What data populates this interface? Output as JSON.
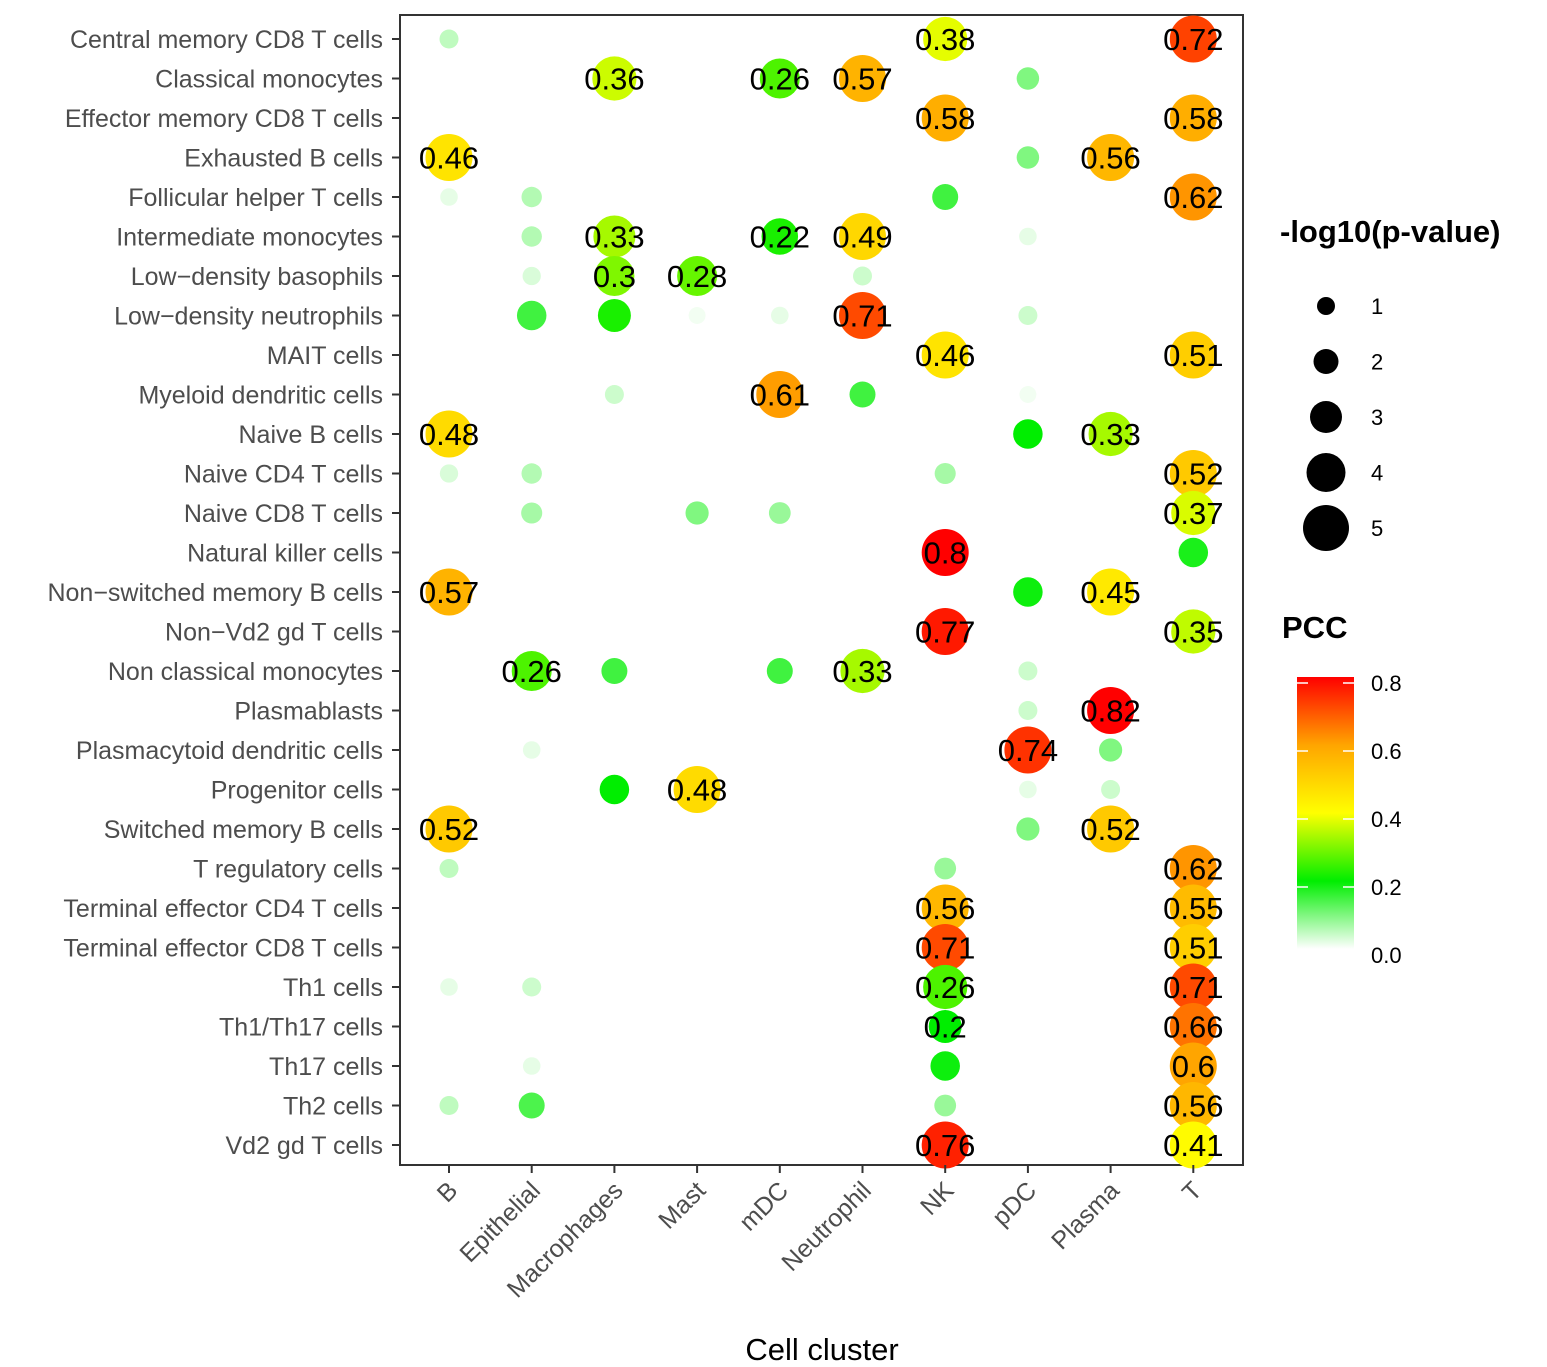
{
  "chart_data": {
    "type": "scatter",
    "title": "",
    "xlabel": "Cell cluster",
    "ylabel": "",
    "x_categories": [
      "B",
      "Epithelial",
      "Macrophages",
      "Mast",
      "mDC",
      "Neutrophil",
      "NK",
      "pDC",
      "Plasma",
      "T"
    ],
    "y_categories": [
      "Central memory CD8 T cells",
      "Classical monocytes",
      "Effector memory CD8 T cells",
      "Exhausted B cells",
      "Follicular helper T cells",
      "Intermediate monocytes",
      "Low−density basophils",
      "Low−density neutrophils",
      "MAIT cells",
      "Myeloid dendritic cells",
      "Naive B cells",
      "Naive CD4 T cells",
      "Naive CD8 T cells",
      "Natural killer cells",
      "Non−switched memory B cells",
      "Non−Vd2 gd T cells",
      "Non classical monocytes",
      "Plasmablasts",
      "Plasmacytoid dendritic cells",
      "Progenitor cells",
      "Switched memory B cells",
      "T regulatory cells",
      "Terminal effector CD4 T cells",
      "Terminal effector CD8 T cells",
      "Th1 cells",
      "Th1/Th17 cells",
      "Th17 cells",
      "Th2 cells",
      "Vd2 gd T cells"
    ],
    "points": [
      {
        "x": "B",
        "y": "Central memory CD8 T cells",
        "pcc": 0.05,
        "logp": 1.0,
        "label": ""
      },
      {
        "x": "NK",
        "y": "Central memory CD8 T cells",
        "pcc": 0.38,
        "logp": 4.6,
        "label": "0.38"
      },
      {
        "x": "T",
        "y": "Central memory CD8 T cells",
        "pcc": 0.72,
        "logp": 5.0,
        "label": "0.72"
      },
      {
        "x": "Macrophages",
        "y": "Classical monocytes",
        "pcc": 0.36,
        "logp": 4.6,
        "label": "0.36"
      },
      {
        "x": "mDC",
        "y": "Classical monocytes",
        "pcc": 0.26,
        "logp": 4.0,
        "label": "0.26"
      },
      {
        "x": "Neutrophil",
        "y": "Classical monocytes",
        "pcc": 0.57,
        "logp": 5.0,
        "label": "0.57"
      },
      {
        "x": "pDC",
        "y": "Classical monocytes",
        "pcc": 0.1,
        "logp": 1.5,
        "label": ""
      },
      {
        "x": "NK",
        "y": "Effector memory CD8 T cells",
        "pcc": 0.58,
        "logp": 5.0,
        "label": "0.58"
      },
      {
        "x": "T",
        "y": "Effector memory CD8 T cells",
        "pcc": 0.58,
        "logp": 5.0,
        "label": "0.58"
      },
      {
        "x": "B",
        "y": "Exhausted B cells",
        "pcc": 0.46,
        "logp": 5.0,
        "label": "0.46"
      },
      {
        "x": "pDC",
        "y": "Exhausted B cells",
        "pcc": 0.1,
        "logp": 1.5,
        "label": ""
      },
      {
        "x": "Plasma",
        "y": "Exhausted B cells",
        "pcc": 0.56,
        "logp": 5.0,
        "label": "0.56"
      },
      {
        "x": "B",
        "y": "Follicular helper T cells",
        "pcc": 0.02,
        "logp": 0.8,
        "label": ""
      },
      {
        "x": "Epithelial",
        "y": "Follicular helper T cells",
        "pcc": 0.06,
        "logp": 1.2,
        "label": ""
      },
      {
        "x": "NK",
        "y": "Follicular helper T cells",
        "pcc": 0.15,
        "logp": 2.0,
        "label": ""
      },
      {
        "x": "T",
        "y": "Follicular helper T cells",
        "pcc": 0.62,
        "logp": 5.0,
        "label": "0.62"
      },
      {
        "x": "Epithelial",
        "y": "Intermediate monocytes",
        "pcc": 0.06,
        "logp": 1.2,
        "label": ""
      },
      {
        "x": "Macrophages",
        "y": "Intermediate monocytes",
        "pcc": 0.33,
        "logp": 4.3,
        "label": "0.33"
      },
      {
        "x": "mDC",
        "y": "Intermediate monocytes",
        "pcc": 0.22,
        "logp": 3.5,
        "label": "0.22"
      },
      {
        "x": "Neutrophil",
        "y": "Intermediate monocytes",
        "pcc": 0.49,
        "logp": 5.0,
        "label": "0.49"
      },
      {
        "x": "pDC",
        "y": "Intermediate monocytes",
        "pcc": 0.02,
        "logp": 0.8,
        "label": ""
      },
      {
        "x": "Epithelial",
        "y": "Low−density basophils",
        "pcc": 0.03,
        "logp": 0.9,
        "label": ""
      },
      {
        "x": "Macrophages",
        "y": "Low−density basophils",
        "pcc": 0.3,
        "logp": 4.0,
        "label": "0.3"
      },
      {
        "x": "Mast",
        "y": "Low−density basophils",
        "pcc": 0.28,
        "logp": 4.0,
        "label": "0.28"
      },
      {
        "x": "Neutrophil",
        "y": "Low−density basophils",
        "pcc": 0.04,
        "logp": 1.0,
        "label": ""
      },
      {
        "x": "Epithelial",
        "y": "Low−density neutrophils",
        "pcc": 0.15,
        "logp": 2.5,
        "label": ""
      },
      {
        "x": "Macrophages",
        "y": "Low−density neutrophils",
        "pcc": 0.22,
        "logp": 3.0,
        "label": ""
      },
      {
        "x": "Mast",
        "y": "Low−density neutrophils",
        "pcc": 0.01,
        "logp": 0.7,
        "label": ""
      },
      {
        "x": "mDC",
        "y": "Low−density neutrophils",
        "pcc": 0.02,
        "logp": 0.8,
        "label": ""
      },
      {
        "x": "Neutrophil",
        "y": "Low−density neutrophils",
        "pcc": 0.71,
        "logp": 5.0,
        "label": "0.71"
      },
      {
        "x": "pDC",
        "y": "Low−density neutrophils",
        "pcc": 0.04,
        "logp": 1.0,
        "label": ""
      },
      {
        "x": "NK",
        "y": "MAIT cells",
        "pcc": 0.46,
        "logp": 5.0,
        "label": "0.46"
      },
      {
        "x": "T",
        "y": "MAIT cells",
        "pcc": 0.51,
        "logp": 5.0,
        "label": "0.51"
      },
      {
        "x": "Macrophages",
        "y": "Myeloid dendritic cells",
        "pcc": 0.04,
        "logp": 1.0,
        "label": ""
      },
      {
        "x": "mDC",
        "y": "Myeloid dendritic cells",
        "pcc": 0.61,
        "logp": 5.0,
        "label": "0.61"
      },
      {
        "x": "Neutrophil",
        "y": "Myeloid dendritic cells",
        "pcc": 0.15,
        "logp": 2.0,
        "label": ""
      },
      {
        "x": "pDC",
        "y": "Myeloid dendritic cells",
        "pcc": 0.01,
        "logp": 0.7,
        "label": ""
      },
      {
        "x": "B",
        "y": "Naive B cells",
        "pcc": 0.48,
        "logp": 5.0,
        "label": "0.48"
      },
      {
        "x": "pDC",
        "y": "Naive B cells",
        "pcc": 0.2,
        "logp": 2.5,
        "label": ""
      },
      {
        "x": "Plasma",
        "y": "Naive B cells",
        "pcc": 0.33,
        "logp": 4.6,
        "label": "0.33"
      },
      {
        "x": "B",
        "y": "Naive CD4 T cells",
        "pcc": 0.03,
        "logp": 0.9,
        "label": ""
      },
      {
        "x": "Epithelial",
        "y": "Naive CD4 T cells",
        "pcc": 0.06,
        "logp": 1.2,
        "label": ""
      },
      {
        "x": "NK",
        "y": "Naive CD4 T cells",
        "pcc": 0.07,
        "logp": 1.3,
        "label": ""
      },
      {
        "x": "T",
        "y": "Naive CD4 T cells",
        "pcc": 0.52,
        "logp": 5.0,
        "label": "0.52"
      },
      {
        "x": "Epithelial",
        "y": "Naive CD8 T cells",
        "pcc": 0.07,
        "logp": 1.3,
        "label": ""
      },
      {
        "x": "Mast",
        "y": "Naive CD8 T cells",
        "pcc": 0.1,
        "logp": 1.6,
        "label": ""
      },
      {
        "x": "mDC",
        "y": "Naive CD8 T cells",
        "pcc": 0.08,
        "logp": 1.4,
        "label": ""
      },
      {
        "x": "T",
        "y": "Naive CD8 T cells",
        "pcc": 0.37,
        "logp": 4.6,
        "label": "0.37"
      },
      {
        "x": "NK",
        "y": "Natural killer cells",
        "pcc": 0.8,
        "logp": 5.0,
        "label": "0.8"
      },
      {
        "x": "T",
        "y": "Natural killer cells",
        "pcc": 0.18,
        "logp": 2.5,
        "label": ""
      },
      {
        "x": "B",
        "y": "Non−switched memory B cells",
        "pcc": 0.57,
        "logp": 5.0,
        "label": "0.57"
      },
      {
        "x": "pDC",
        "y": "Non−switched memory B cells",
        "pcc": 0.19,
        "logp": 2.5,
        "label": ""
      },
      {
        "x": "Plasma",
        "y": "Non−switched memory B cells",
        "pcc": 0.45,
        "logp": 5.0,
        "label": "0.45"
      },
      {
        "x": "NK",
        "y": "Non−Vd2 gd T cells",
        "pcc": 0.77,
        "logp": 5.0,
        "label": "0.77"
      },
      {
        "x": "T",
        "y": "Non−Vd2 gd T cells",
        "pcc": 0.35,
        "logp": 4.6,
        "label": "0.35"
      },
      {
        "x": "Epithelial",
        "y": "Non classical monocytes",
        "pcc": 0.26,
        "logp": 4.0,
        "label": "0.26"
      },
      {
        "x": "Macrophages",
        "y": "Non classical monocytes",
        "pcc": 0.15,
        "logp": 2.0,
        "label": ""
      },
      {
        "x": "mDC",
        "y": "Non classical monocytes",
        "pcc": 0.15,
        "logp": 2.0,
        "label": ""
      },
      {
        "x": "Neutrophil",
        "y": "Non classical monocytes",
        "pcc": 0.33,
        "logp": 4.6,
        "label": "0.33"
      },
      {
        "x": "pDC",
        "y": "Non classical monocytes",
        "pcc": 0.04,
        "logp": 1.0,
        "label": ""
      },
      {
        "x": "pDC",
        "y": "Plasmablasts",
        "pcc": 0.04,
        "logp": 1.0,
        "label": ""
      },
      {
        "x": "Plasma",
        "y": "Plasmablasts",
        "pcc": 0.82,
        "logp": 5.0,
        "label": "0.82"
      },
      {
        "x": "Epithelial",
        "y": "Plasmacytoid dendritic cells",
        "pcc": 0.02,
        "logp": 0.8,
        "label": ""
      },
      {
        "x": "pDC",
        "y": "Plasmacytoid dendritic cells",
        "pcc": 0.74,
        "logp": 5.0,
        "label": "0.74"
      },
      {
        "x": "Plasma",
        "y": "Plasmacytoid dendritic cells",
        "pcc": 0.1,
        "logp": 1.6,
        "label": ""
      },
      {
        "x": "Macrophages",
        "y": "Progenitor cells",
        "pcc": 0.2,
        "logp": 2.5,
        "label": ""
      },
      {
        "x": "Mast",
        "y": "Progenitor cells",
        "pcc": 0.48,
        "logp": 5.0,
        "label": "0.48"
      },
      {
        "x": "pDC",
        "y": "Progenitor cells",
        "pcc": 0.02,
        "logp": 0.8,
        "label": ""
      },
      {
        "x": "Plasma",
        "y": "Progenitor cells",
        "pcc": 0.04,
        "logp": 1.0,
        "label": ""
      },
      {
        "x": "B",
        "y": "Switched memory B cells",
        "pcc": 0.52,
        "logp": 5.0,
        "label": "0.52"
      },
      {
        "x": "pDC",
        "y": "Switched memory B cells",
        "pcc": 0.1,
        "logp": 1.6,
        "label": ""
      },
      {
        "x": "Plasma",
        "y": "Switched memory B cells",
        "pcc": 0.52,
        "logp": 5.0,
        "label": "0.52"
      },
      {
        "x": "B",
        "y": "T regulatory cells",
        "pcc": 0.05,
        "logp": 1.0,
        "label": ""
      },
      {
        "x": "NK",
        "y": "T regulatory cells",
        "pcc": 0.08,
        "logp": 1.4,
        "label": ""
      },
      {
        "x": "T",
        "y": "T regulatory cells",
        "pcc": 0.62,
        "logp": 5.0,
        "label": "0.62"
      },
      {
        "x": "NK",
        "y": "Terminal effector CD4 T cells",
        "pcc": 0.56,
        "logp": 5.0,
        "label": "0.56"
      },
      {
        "x": "T",
        "y": "Terminal effector CD4 T cells",
        "pcc": 0.55,
        "logp": 5.0,
        "label": "0.55"
      },
      {
        "x": "NK",
        "y": "Terminal effector CD8 T cells",
        "pcc": 0.71,
        "logp": 5.0,
        "label": "0.71"
      },
      {
        "x": "T",
        "y": "Terminal effector CD8 T cells",
        "pcc": 0.51,
        "logp": 5.0,
        "label": "0.51"
      },
      {
        "x": "B",
        "y": "Th1 cells",
        "pcc": 0.02,
        "logp": 0.8,
        "label": ""
      },
      {
        "x": "Epithelial",
        "y": "Th1 cells",
        "pcc": 0.04,
        "logp": 1.0,
        "label": ""
      },
      {
        "x": "NK",
        "y": "Th1 cells",
        "pcc": 0.26,
        "logp": 4.6,
        "label": "0.26"
      },
      {
        "x": "T",
        "y": "Th1 cells",
        "pcc": 0.71,
        "logp": 5.0,
        "label": "0.71"
      },
      {
        "x": "NK",
        "y": "Th1/Th17 cells",
        "pcc": 0.2,
        "logp": 3.0,
        "label": "0.2"
      },
      {
        "x": "T",
        "y": "Th1/Th17 cells",
        "pcc": 0.66,
        "logp": 5.0,
        "label": "0.66"
      },
      {
        "x": "Epithelial",
        "y": "Th17 cells",
        "pcc": 0.02,
        "logp": 0.8,
        "label": ""
      },
      {
        "x": "NK",
        "y": "Th17 cells",
        "pcc": 0.19,
        "logp": 2.5,
        "label": ""
      },
      {
        "x": "T",
        "y": "Th17 cells",
        "pcc": 0.6,
        "logp": 5.0,
        "label": "0.6"
      },
      {
        "x": "B",
        "y": "Th2 cells",
        "pcc": 0.05,
        "logp": 1.0,
        "label": ""
      },
      {
        "x": "Epithelial",
        "y": "Th2 cells",
        "pcc": 0.14,
        "logp": 2.0,
        "label": ""
      },
      {
        "x": "NK",
        "y": "Th2 cells",
        "pcc": 0.08,
        "logp": 1.4,
        "label": ""
      },
      {
        "x": "T",
        "y": "Th2 cells",
        "pcc": 0.56,
        "logp": 5.0,
        "label": "0.56"
      },
      {
        "x": "NK",
        "y": "Vd2 gd T cells",
        "pcc": 0.76,
        "logp": 5.0,
        "label": "0.76"
      },
      {
        "x": "T",
        "y": "Vd2 gd T cells",
        "pcc": 0.41,
        "logp": 5.0,
        "label": "0.41"
      }
    ],
    "size_legend": {
      "title": "-log10(p-value)",
      "values": [
        1,
        2,
        3,
        4,
        5
      ],
      "labels": [
        "1",
        "2",
        "3",
        "4",
        "5"
      ]
    },
    "color_legend": {
      "title": "PCC",
      "range": [
        0.0,
        0.8
      ],
      "ticks": [
        0.0,
        0.2,
        0.4,
        0.6,
        0.8
      ],
      "tick_labels": [
        "0.0",
        "0.2",
        "0.4",
        "0.6",
        "0.8"
      ],
      "color_stops": [
        {
          "value": 0.0,
          "color": "#ffffff"
        },
        {
          "value": 0.2,
          "color": "#00ee00"
        },
        {
          "value": 0.4,
          "color": "#ffff00"
        },
        {
          "value": 0.6,
          "color": "#ffa500"
        },
        {
          "value": 0.8,
          "color": "#ff0000"
        }
      ]
    },
    "grid": false,
    "legend_position": "right"
  }
}
